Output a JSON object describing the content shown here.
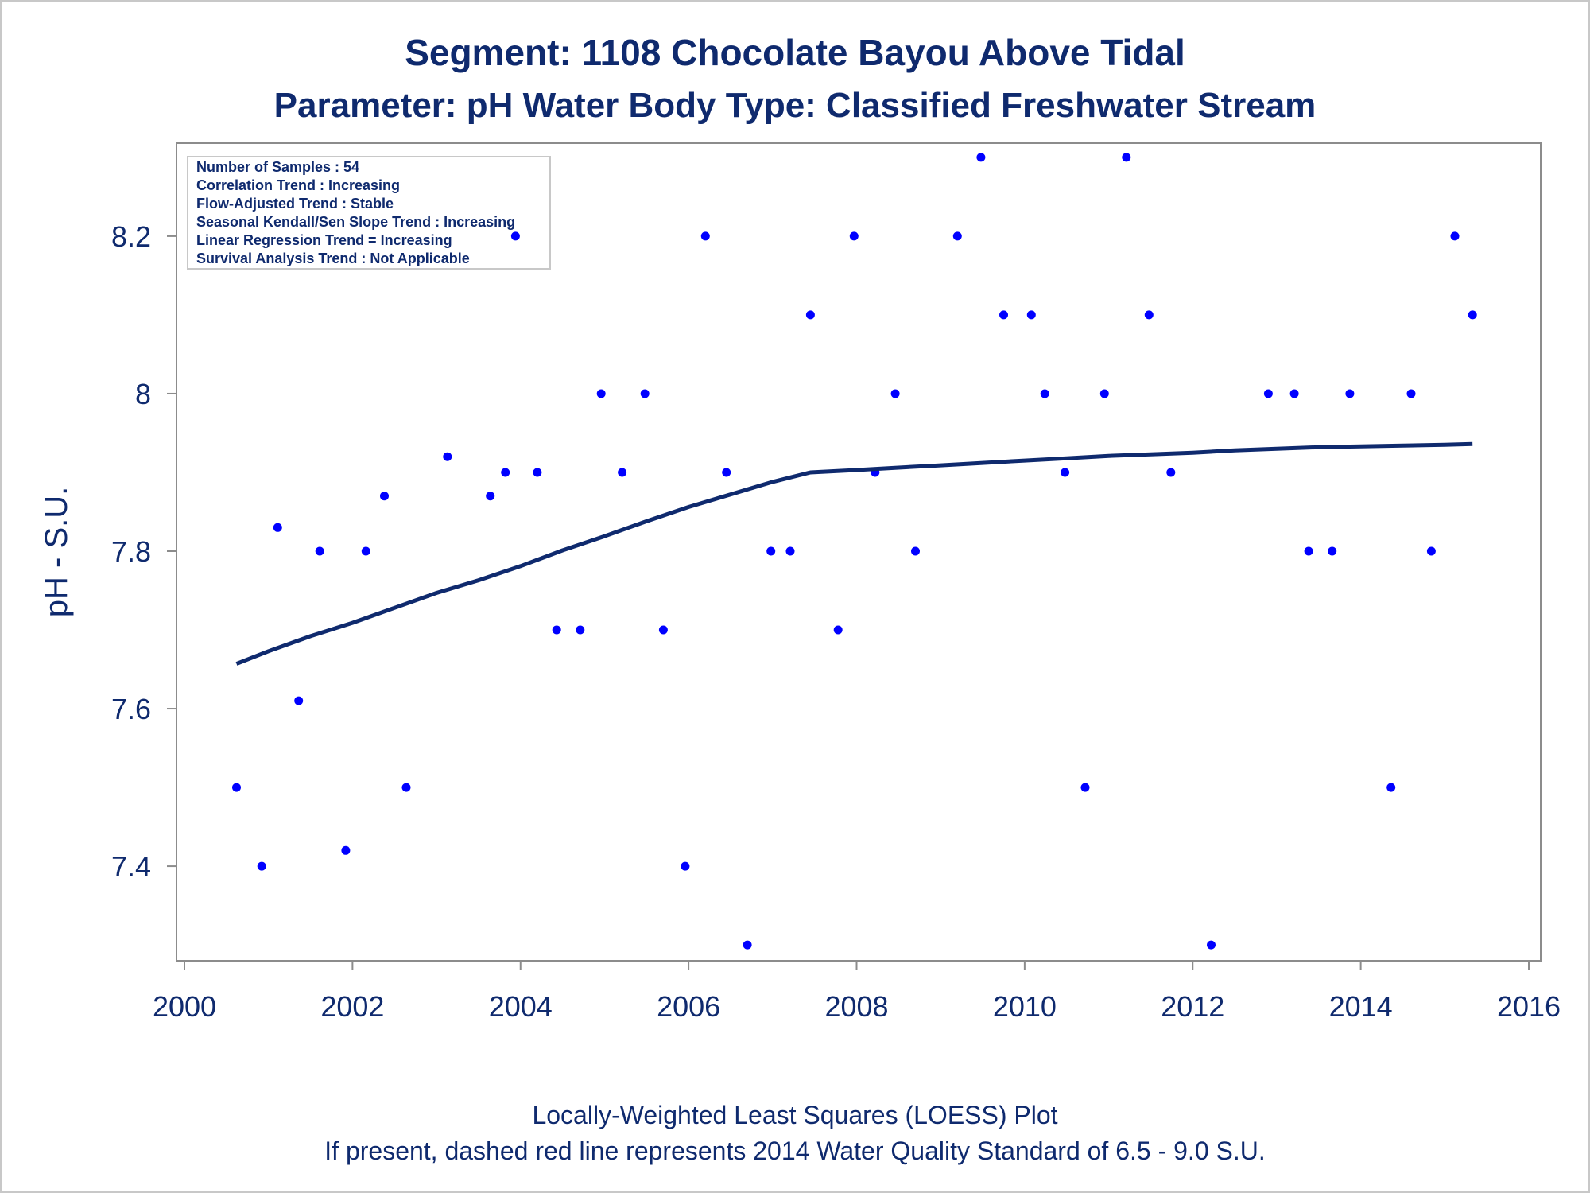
{
  "chart_data": {
    "type": "scatter",
    "title": "Segment: 1108  Chocolate Bayou Above Tidal",
    "subtitle": "Parameter: pH   Water Body Type: Classified Freshwater Stream",
    "xlabel": "",
    "ylabel": "pH - S.U.",
    "xlim": [
      2000,
      2016
    ],
    "ylim": [
      7.29,
      8.31
    ],
    "x_ticks": [
      "2000",
      "2002",
      "2004",
      "2006",
      "2008",
      "2010",
      "2012",
      "2014",
      "2016"
    ],
    "y_ticks": [
      "7.4",
      "7.6",
      "7.8",
      "8",
      "8.2"
    ],
    "grid": false,
    "stats_box": [
      "Number of Samples : 54",
      "Correlation Trend : Increasing",
      "Flow-Adjusted Trend : Stable",
      "Seasonal Kendall/Sen Slope Trend : Increasing",
      "Linear Regression Trend = Increasing",
      "Survival Analysis Trend : Not Applicable"
    ],
    "footnotes": [
      "Locally-Weighted Least Squares (LOESS) Plot",
      "If present, dashed red line represents 2014 Water Quality Standard of 6.5 - 9.0 S.U."
    ],
    "series": [
      {
        "type": "scatter",
        "color": "#0000ff",
        "points": [
          [
            2000.62,
            7.5
          ],
          [
            2000.92,
            7.4
          ],
          [
            2001.11,
            7.83
          ],
          [
            2001.36,
            7.61
          ],
          [
            2001.61,
            7.8
          ],
          [
            2001.92,
            7.42
          ],
          [
            2002.16,
            7.8
          ],
          [
            2002.38,
            7.87
          ],
          [
            2002.64,
            7.5
          ],
          [
            2003.13,
            7.92
          ],
          [
            2003.64,
            7.87
          ],
          [
            2003.82,
            7.9
          ],
          [
            2003.94,
            8.2
          ],
          [
            2004.2,
            7.9
          ],
          [
            2004.43,
            7.7
          ],
          [
            2004.71,
            7.7
          ],
          [
            2004.96,
            8.0
          ],
          [
            2005.21,
            7.9
          ],
          [
            2005.48,
            8.0
          ],
          [
            2005.7,
            7.7
          ],
          [
            2005.96,
            7.4
          ],
          [
            2006.2,
            8.2
          ],
          [
            2006.45,
            7.9
          ],
          [
            2006.7,
            7.3
          ],
          [
            2006.98,
            7.8
          ],
          [
            2007.21,
            7.8
          ],
          [
            2007.45,
            8.1
          ],
          [
            2007.78,
            7.7
          ],
          [
            2007.97,
            8.2
          ],
          [
            2008.22,
            7.9
          ],
          [
            2008.46,
            8.0
          ],
          [
            2008.7,
            7.8
          ],
          [
            2009.2,
            8.2
          ],
          [
            2009.48,
            8.3
          ],
          [
            2009.75,
            8.1
          ],
          [
            2010.08,
            8.1
          ],
          [
            2010.24,
            8.0
          ],
          [
            2010.48,
            7.9
          ],
          [
            2010.72,
            7.5
          ],
          [
            2010.95,
            8.0
          ],
          [
            2011.21,
            8.3
          ],
          [
            2011.48,
            8.1
          ],
          [
            2011.74,
            7.9
          ],
          [
            2012.22,
            7.3
          ],
          [
            2012.9,
            8.0
          ],
          [
            2013.21,
            8.0
          ],
          [
            2013.38,
            7.8
          ],
          [
            2013.66,
            7.8
          ],
          [
            2013.87,
            8.0
          ],
          [
            2014.36,
            7.5
          ],
          [
            2014.6,
            8.0
          ],
          [
            2014.84,
            7.8
          ],
          [
            2015.12,
            8.2
          ],
          [
            2015.33,
            8.1
          ]
        ]
      },
      {
        "type": "line",
        "color": "#0f2a6e",
        "points": [
          [
            2000.62,
            7.657
          ],
          [
            2001.0,
            7.673
          ],
          [
            2001.5,
            7.692
          ],
          [
            2002.0,
            7.709
          ],
          [
            2002.5,
            7.728
          ],
          [
            2003.0,
            7.747
          ],
          [
            2003.5,
            7.763
          ],
          [
            2004.0,
            7.781
          ],
          [
            2004.5,
            7.801
          ],
          [
            2005.0,
            7.819
          ],
          [
            2005.5,
            7.838
          ],
          [
            2006.0,
            7.856
          ],
          [
            2006.5,
            7.872
          ],
          [
            2007.0,
            7.888
          ],
          [
            2007.45,
            7.9
          ],
          [
            2008.0,
            7.903
          ],
          [
            2008.5,
            7.906
          ],
          [
            2009.0,
            7.909
          ],
          [
            2009.5,
            7.912
          ],
          [
            2010.0,
            7.915
          ],
          [
            2010.5,
            7.918
          ],
          [
            2011.0,
            7.921
          ],
          [
            2011.5,
            7.923
          ],
          [
            2012.0,
            7.925
          ],
          [
            2012.5,
            7.928
          ],
          [
            2013.0,
            7.93
          ],
          [
            2013.5,
            7.932
          ],
          [
            2014.0,
            7.933
          ],
          [
            2014.5,
            7.934
          ],
          [
            2015.0,
            7.935
          ],
          [
            2015.33,
            7.936
          ]
        ]
      }
    ]
  }
}
